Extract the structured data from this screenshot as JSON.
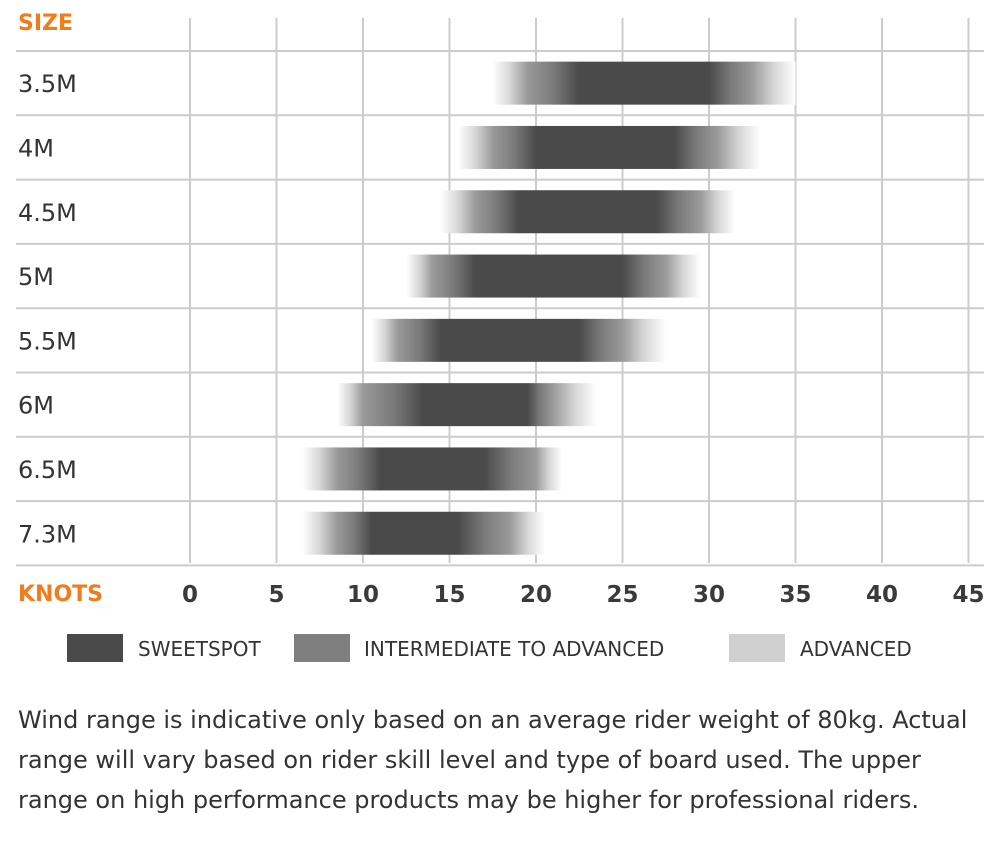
{
  "chart_data": {
    "type": "bar",
    "y_axis_title": "SIZE",
    "x_axis_title": "KNOTS",
    "categories": [
      "3.5M",
      "4M",
      "4.5M",
      "5M",
      "5.5M",
      "6M",
      "6.5M",
      "7.3M"
    ],
    "x_ticks": [
      0,
      5,
      10,
      15,
      20,
      25,
      30,
      35,
      40,
      45
    ],
    "xlim": [
      0,
      45
    ],
    "grid": true,
    "legend_position": "bottom",
    "series": [
      {
        "name": "SWEETSPOT",
        "color": "#4a4a4a",
        "values": [
          [
            22.5,
            30
          ],
          [
            20,
            28
          ],
          [
            19,
            27
          ],
          [
            16.5,
            25
          ],
          [
            14.5,
            22.5
          ],
          [
            13.5,
            19.5
          ],
          [
            11,
            17
          ],
          [
            10.5,
            15.5
          ]
        ]
      },
      {
        "name": "INTERMEDIATE TO ADVANCED",
        "color": "#7f7f7f",
        "values": [
          [
            19.5,
            32.5
          ],
          [
            17.5,
            30.5
          ],
          [
            16.5,
            29.5
          ],
          [
            14,
            27.5
          ],
          [
            12,
            25
          ],
          [
            10,
            21
          ],
          [
            8.5,
            20
          ],
          [
            8.5,
            18.5
          ]
        ]
      },
      {
        "name": "ADVANCED",
        "color": "#cfcfcf",
        "values": [
          [
            17.5,
            35
          ],
          [
            15.5,
            33
          ],
          [
            14.5,
            31.5
          ],
          [
            12.5,
            29.5
          ],
          [
            10.5,
            27.5
          ],
          [
            8.5,
            23.5
          ],
          [
            6.5,
            21.5
          ],
          [
            6.5,
            20.5
          ]
        ]
      }
    ]
  },
  "note": "Wind range is indicative only based on an average rider weight of 80kg. Actual range will vary based on rider skill level and type of board used. The upper range on high performance products may be higher for professional riders.",
  "colors": {
    "accent": "#f07c1c",
    "grid": "#cccccc",
    "text": "#333333"
  }
}
